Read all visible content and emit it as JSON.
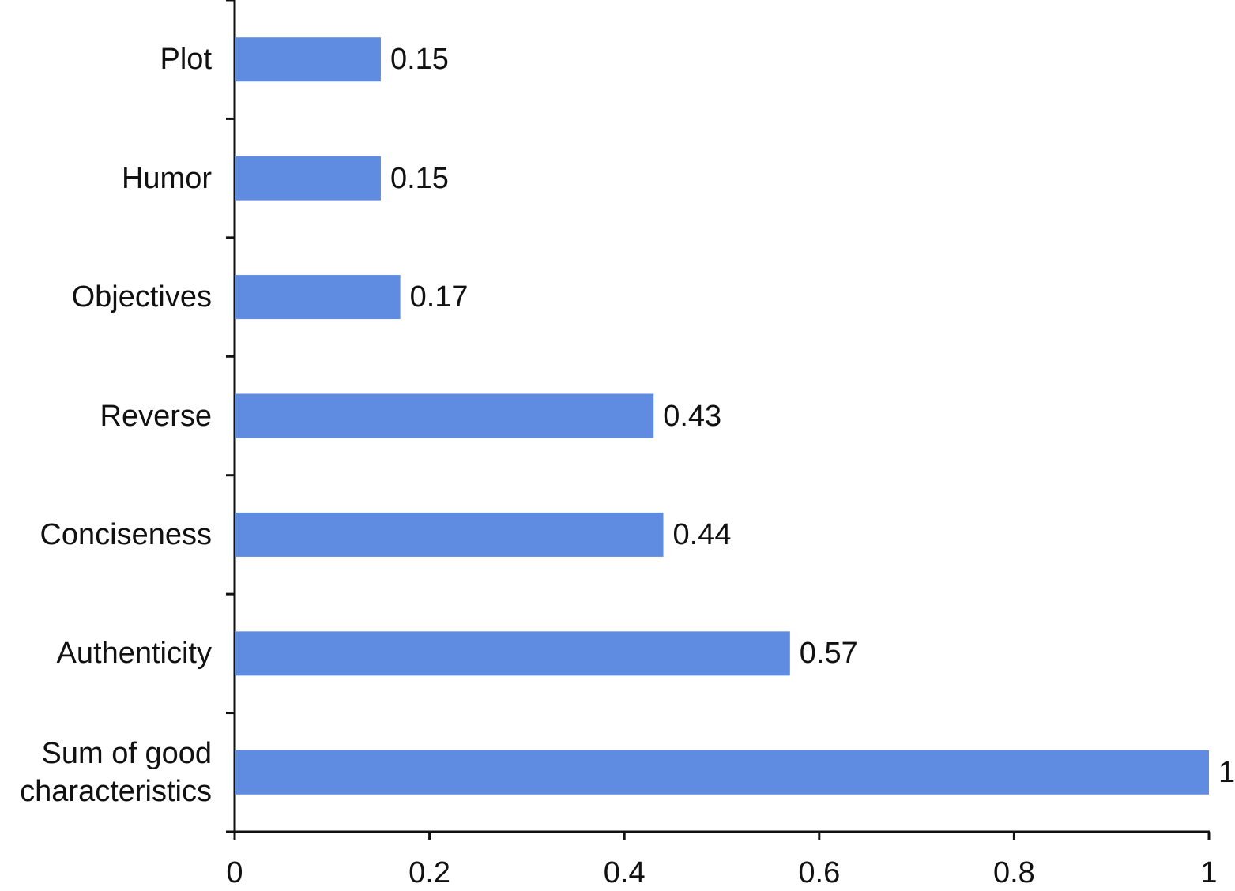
{
  "chart_data": {
    "type": "bar",
    "orientation": "horizontal",
    "categories": [
      "Plot",
      "Humor",
      "Objectives",
      "Reverse",
      "Conciseness",
      "Authenticity",
      "Sum of good characteristics"
    ],
    "values": [
      0.15,
      0.15,
      0.17,
      0.43,
      0.44,
      0.57,
      1
    ],
    "color": "#5f8be0",
    "xlim": [
      0,
      1
    ],
    "xticks": [
      0,
      0.2,
      0.4,
      0.6,
      0.8,
      1
    ],
    "grid": false
  }
}
